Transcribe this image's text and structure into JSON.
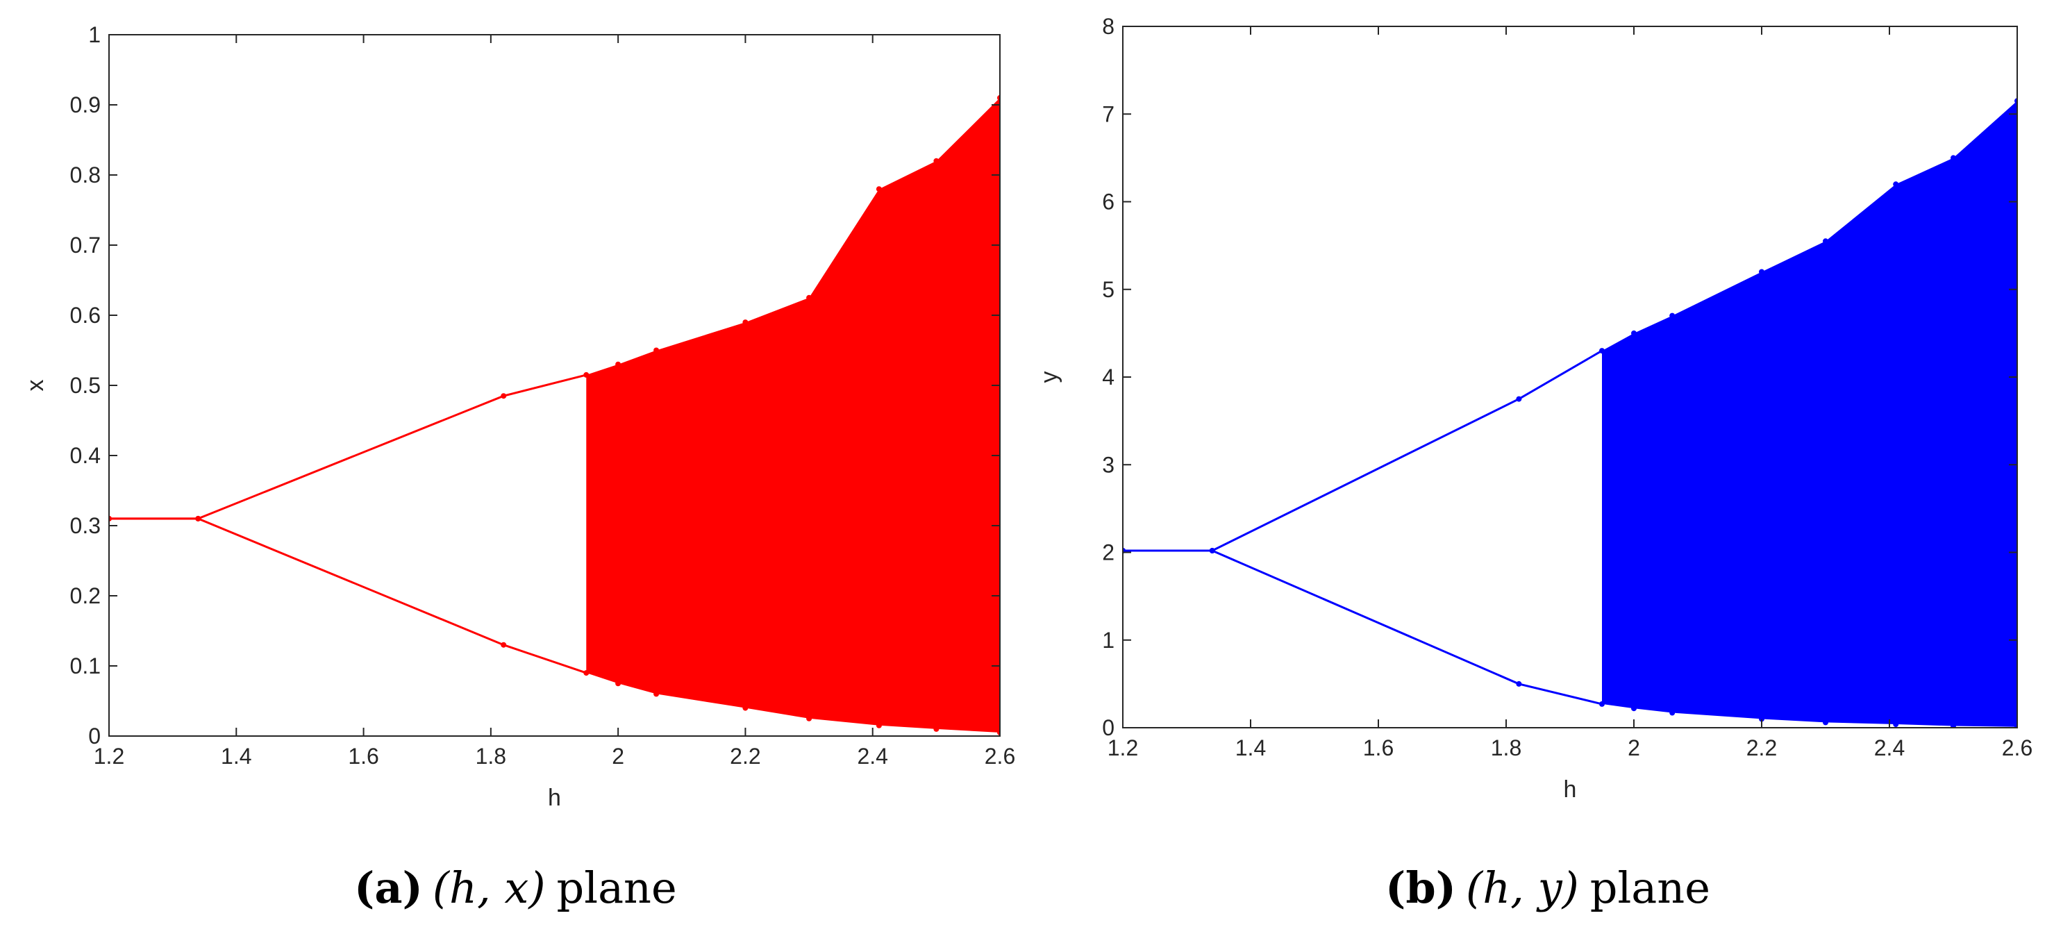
{
  "chart_data": [
    {
      "type": "scatter",
      "panel": "a",
      "caption": {
        "letter": "(a)",
        "math": "(h, x)",
        "suffix": "plane"
      },
      "xlabel": "h",
      "ylabel": "x",
      "xlim": [
        1.2,
        2.6
      ],
      "ylim": [
        0,
        1
      ],
      "xticks": [
        "1.2",
        "1.4",
        "1.6",
        "1.8",
        "2",
        "2.2",
        "2.4",
        "2.6"
      ],
      "yticks": [
        "0",
        "0.1",
        "0.2",
        "0.3",
        "0.4",
        "0.5",
        "0.6",
        "0.7",
        "0.8",
        "0.9",
        "1"
      ],
      "color": "#ff0000",
      "grid": false,
      "series": [
        {
          "values": [
            {
              "h": 1.2,
              "lo": 0.31,
              "hi": 0.31
            },
            {
              "h": 1.34,
              "lo": 0.31,
              "hi": 0.31
            },
            {
              "h": 1.82,
              "lo": 0.13,
              "hi": 0.485
            },
            {
              "h": 1.95,
              "lo": 0.09,
              "hi": 0.515
            },
            {
              "h": 2.0,
              "lo": 0.075,
              "hi": 0.53
            },
            {
              "h": 2.06,
              "lo": 0.06,
              "hi": 0.55
            },
            {
              "h": 2.2,
              "lo": 0.04,
              "hi": 0.59
            },
            {
              "h": 2.3,
              "lo": 0.025,
              "hi": 0.625
            },
            {
              "h": 2.41,
              "lo": 0.015,
              "hi": 0.78
            },
            {
              "h": 2.5,
              "lo": 0.01,
              "hi": 0.82
            },
            {
              "h": 2.6,
              "lo": 0.005,
              "hi": 0.91
            }
          ]
        }
      ]
    },
    {
      "type": "scatter",
      "panel": "b",
      "caption": {
        "letter": "(b)",
        "math": "(h, y)",
        "suffix": "plane"
      },
      "xlabel": "h",
      "ylabel": "y",
      "xlim": [
        1.2,
        2.6
      ],
      "ylim": [
        0,
        8
      ],
      "xticks": [
        "1.2",
        "1.4",
        "1.6",
        "1.8",
        "2",
        "2.2",
        "2.4",
        "2.6"
      ],
      "yticks": [
        "0",
        "1",
        "2",
        "3",
        "4",
        "5",
        "6",
        "7",
        "8"
      ],
      "color": "#0000ff",
      "grid": false,
      "series": [
        {
          "values": [
            {
              "h": 1.2,
              "lo": 2.02,
              "hi": 2.02
            },
            {
              "h": 1.34,
              "lo": 2.02,
              "hi": 2.02
            },
            {
              "h": 1.82,
              "lo": 0.5,
              "hi": 3.75
            },
            {
              "h": 1.95,
              "lo": 0.27,
              "hi": 4.3
            },
            {
              "h": 2.0,
              "lo": 0.22,
              "hi": 4.5
            },
            {
              "h": 2.06,
              "lo": 0.17,
              "hi": 4.7
            },
            {
              "h": 2.2,
              "lo": 0.1,
              "hi": 5.2
            },
            {
              "h": 2.3,
              "lo": 0.06,
              "hi": 5.55
            },
            {
              "h": 2.41,
              "lo": 0.04,
              "hi": 6.2
            },
            {
              "h": 2.5,
              "lo": 0.02,
              "hi": 6.5
            },
            {
              "h": 2.6,
              "lo": 0.01,
              "hi": 7.15
            }
          ]
        }
      ]
    }
  ]
}
